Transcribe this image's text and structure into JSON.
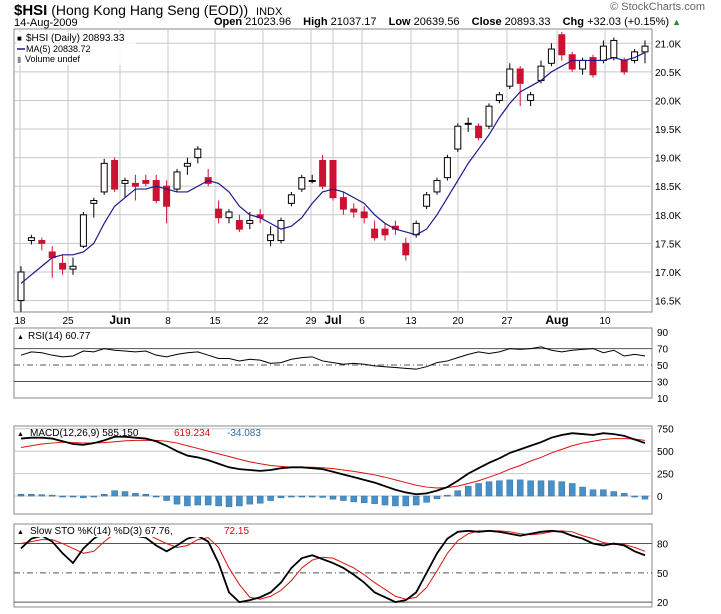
{
  "header": {
    "symbol": "$HSI",
    "name": "(Hong Kong Hang Seng (EOD))",
    "exchange": "INDX",
    "date": "14-Aug-2009",
    "open_label": "Open",
    "open": "21023.96",
    "high_label": "High",
    "high": "21037.17",
    "low_label": "Low",
    "low": "20639.56",
    "close_label": "Close",
    "close": "20893.33",
    "chg_label": "Chg",
    "chg": "+32.03 (+0.15%)",
    "brand": "© StockCharts.com"
  },
  "colors": {
    "up": "#000000",
    "down": "#cc1133",
    "ma": "#1a1a8c",
    "signal": "#dd1111",
    "hist": "#4a90c8",
    "grid": "#c8c8c8"
  },
  "chart_data": [
    {
      "type": "candlestick",
      "legend": [
        "$HSI (Daily) 20893.33",
        "MA(5) 20838.72",
        "Volume undef"
      ],
      "x_ticks": [
        "18",
        "25",
        "Jun",
        "8",
        "15",
        "22",
        "29",
        "Jul",
        "6",
        "13",
        "20",
        "27",
        "Aug",
        "10"
      ],
      "y_ticks": [
        "21.0K",
        "20.5K",
        "20.0K",
        "19.5K",
        "19.0K",
        "18.5K",
        "18.0K",
        "17.5K",
        "17.0K",
        "16.5K"
      ],
      "ylim": [
        16300,
        21250
      ],
      "candles": [
        {
          "o": 16500,
          "h": 17100,
          "l": 16300,
          "c": 17000
        },
        {
          "o": 17550,
          "h": 17650,
          "l": 17480,
          "c": 17600
        },
        {
          "o": 17550,
          "h": 17600,
          "l": 17380,
          "c": 17500
        },
        {
          "o": 17350,
          "h": 17450,
          "l": 16900,
          "c": 17250
        },
        {
          "o": 17150,
          "h": 17300,
          "l": 16950,
          "c": 17050
        },
        {
          "o": 17050,
          "h": 17250,
          "l": 16950,
          "c": 17100
        },
        {
          "o": 17450,
          "h": 18050,
          "l": 17420,
          "c": 18000
        },
        {
          "o": 18200,
          "h": 18300,
          "l": 17950,
          "c": 18250
        },
        {
          "o": 18400,
          "h": 18980,
          "l": 18350,
          "c": 18900
        },
        {
          "o": 18950,
          "h": 19000,
          "l": 18400,
          "c": 18450
        },
        {
          "o": 18550,
          "h": 18650,
          "l": 18300,
          "c": 18600
        },
        {
          "o": 18550,
          "h": 18700,
          "l": 18250,
          "c": 18500
        },
        {
          "o": 18600,
          "h": 18700,
          "l": 18500,
          "c": 18550
        },
        {
          "o": 18600,
          "h": 18700,
          "l": 18200,
          "c": 18250
        },
        {
          "o": 18500,
          "h": 18600,
          "l": 17850,
          "c": 18150
        },
        {
          "o": 18450,
          "h": 18800,
          "l": 18400,
          "c": 18750
        },
        {
          "o": 18850,
          "h": 19000,
          "l": 18700,
          "c": 18900
        },
        {
          "o": 19000,
          "h": 19200,
          "l": 18900,
          "c": 19150
        },
        {
          "o": 18650,
          "h": 18800,
          "l": 18500,
          "c": 18550
        },
        {
          "o": 18100,
          "h": 18250,
          "l": 17850,
          "c": 17950
        },
        {
          "o": 17950,
          "h": 18100,
          "l": 17850,
          "c": 18050
        },
        {
          "o": 17900,
          "h": 18000,
          "l": 17700,
          "c": 17750
        },
        {
          "o": 17850,
          "h": 18050,
          "l": 17750,
          "c": 17900
        },
        {
          "o": 18000,
          "h": 18100,
          "l": 17850,
          "c": 17950
        },
        {
          "o": 17550,
          "h": 17800,
          "l": 17450,
          "c": 17650
        },
        {
          "o": 17550,
          "h": 17950,
          "l": 17500,
          "c": 17900
        },
        {
          "o": 18200,
          "h": 18400,
          "l": 18150,
          "c": 18350
        },
        {
          "o": 18450,
          "h": 18700,
          "l": 18400,
          "c": 18650
        },
        {
          "o": 18600,
          "h": 18700,
          "l": 18550,
          "c": 18600
        },
        {
          "o": 18950,
          "h": 19050,
          "l": 18450,
          "c": 18500
        },
        {
          "o": 18950,
          "h": 18950,
          "l": 18250,
          "c": 18300
        },
        {
          "o": 18300,
          "h": 18400,
          "l": 18000,
          "c": 18100
        },
        {
          "o": 18100,
          "h": 18200,
          "l": 17950,
          "c": 18050
        },
        {
          "o": 18050,
          "h": 18150,
          "l": 17850,
          "c": 17950
        },
        {
          "o": 17750,
          "h": 17900,
          "l": 17550,
          "c": 17600
        },
        {
          "o": 17750,
          "h": 17850,
          "l": 17550,
          "c": 17650
        },
        {
          "o": 17800,
          "h": 17900,
          "l": 17650,
          "c": 17750
        },
        {
          "o": 17500,
          "h": 17600,
          "l": 17200,
          "c": 17300
        },
        {
          "o": 17650,
          "h": 17900,
          "l": 17600,
          "c": 17850
        },
        {
          "o": 18150,
          "h": 18400,
          "l": 18100,
          "c": 18350
        },
        {
          "o": 18400,
          "h": 18650,
          "l": 18350,
          "c": 18600
        },
        {
          "o": 18650,
          "h": 19050,
          "l": 18600,
          "c": 19000
        },
        {
          "o": 19150,
          "h": 19600,
          "l": 19100,
          "c": 19550
        },
        {
          "o": 19600,
          "h": 19700,
          "l": 19450,
          "c": 19600
        },
        {
          "o": 19550,
          "h": 19600,
          "l": 19300,
          "c": 19350
        },
        {
          "o": 19550,
          "h": 19950,
          "l": 19500,
          "c": 19900
        },
        {
          "o": 20000,
          "h": 20150,
          "l": 19950,
          "c": 20100
        },
        {
          "o": 20250,
          "h": 20650,
          "l": 20200,
          "c": 20550
        },
        {
          "o": 20550,
          "h": 20600,
          "l": 19900,
          "c": 20300
        },
        {
          "o": 20000,
          "h": 20150,
          "l": 19900,
          "c": 20100
        },
        {
          "o": 20350,
          "h": 20700,
          "l": 20300,
          "c": 20600
        },
        {
          "o": 20650,
          "h": 21000,
          "l": 20600,
          "c": 20900
        },
        {
          "o": 21150,
          "h": 21200,
          "l": 20700,
          "c": 20800
        },
        {
          "o": 20800,
          "h": 20850,
          "l": 20500,
          "c": 20550
        },
        {
          "o": 20550,
          "h": 20750,
          "l": 20450,
          "c": 20700
        },
        {
          "o": 20750,
          "h": 20800,
          "l": 20400,
          "c": 20450
        },
        {
          "o": 20700,
          "h": 21050,
          "l": 20650,
          "c": 20950
        },
        {
          "o": 20750,
          "h": 21100,
          "l": 20700,
          "c": 21050
        },
        {
          "o": 20700,
          "h": 20750,
          "l": 20450,
          "c": 20500
        },
        {
          "o": 20700,
          "h": 20900,
          "l": 20650,
          "c": 20850
        },
        {
          "o": 20850,
          "h": 21050,
          "l": 20650,
          "c": 20950
        }
      ],
      "ma5": [
        16800,
        16950,
        17100,
        17250,
        17300,
        17300,
        17350,
        17500,
        17850,
        18150,
        18300,
        18450,
        18450,
        18500,
        18450,
        18400,
        18400,
        18500,
        18600,
        18550,
        18400,
        18150,
        18000,
        17950,
        17850,
        17750,
        17800,
        17950,
        18200,
        18400,
        18450,
        18400,
        18300,
        18200,
        18000,
        17850,
        17750,
        17700,
        17650,
        17750,
        18000,
        18300,
        18600,
        18900,
        19150,
        19400,
        19700,
        19950,
        20150,
        20250,
        20350,
        20500,
        20600,
        20700,
        20700,
        20700,
        20700,
        20750,
        20700,
        20750,
        20840
      ]
    },
    {
      "type": "line",
      "legend": [
        "RSI(14) 60.77"
      ],
      "y_ticks": [
        "90",
        "70",
        "50",
        "30",
        "10"
      ],
      "ylim": [
        10,
        95
      ],
      "values": [
        62,
        66,
        65,
        62,
        60,
        61,
        67,
        66,
        70,
        68,
        67,
        66,
        67,
        62,
        60,
        63,
        65,
        66,
        62,
        58,
        58,
        55,
        57,
        56,
        52,
        53,
        57,
        59,
        60,
        55,
        53,
        51,
        52,
        51,
        49,
        48,
        47,
        46,
        45,
        48,
        53,
        55,
        59,
        63,
        66,
        64,
        66,
        70,
        69,
        70,
        72,
        68,
        66,
        68,
        69,
        70,
        65,
        68,
        61,
        63,
        61
      ]
    },
    {
      "type": "line",
      "legend": [
        "MACD(12,26,9) 585.150",
        "619.234",
        "-34.083"
      ],
      "y_ticks": [
        "750",
        "500",
        "250",
        "0"
      ],
      "ylim": [
        -200,
        780
      ],
      "macd": [
        640,
        650,
        650,
        640,
        610,
        580,
        570,
        590,
        620,
        660,
        660,
        650,
        640,
        610,
        560,
        500,
        450,
        430,
        400,
        360,
        320,
        300,
        290,
        280,
        290,
        310,
        320,
        320,
        310,
        300,
        270,
        240,
        210,
        180,
        150,
        110,
        70,
        40,
        20,
        30,
        60,
        100,
        170,
        250,
        310,
        370,
        420,
        480,
        520,
        560,
        600,
        650,
        680,
        700,
        690,
        680,
        700,
        690,
        670,
        630,
        590
      ],
      "signal": [
        540,
        560,
        580,
        590,
        600,
        595,
        590,
        590,
        595,
        605,
        615,
        620,
        620,
        620,
        610,
        590,
        560,
        530,
        500,
        470,
        440,
        410,
        380,
        360,
        340,
        330,
        320,
        320,
        320,
        315,
        305,
        290,
        275,
        255,
        235,
        210,
        180,
        150,
        120,
        100,
        90,
        95,
        110,
        140,
        170,
        210,
        250,
        300,
        340,
        390,
        430,
        480,
        520,
        560,
        590,
        610,
        630,
        640,
        640,
        635,
        620
      ],
      "histogram": [
        20,
        20,
        15,
        10,
        0,
        -10,
        -20,
        -5,
        20,
        60,
        50,
        30,
        20,
        -10,
        -50,
        -90,
        -110,
        -100,
        -100,
        -110,
        -120,
        -110,
        -90,
        -80,
        -50,
        -20,
        0,
        0,
        -10,
        -15,
        -35,
        -50,
        -65,
        -75,
        -85,
        -100,
        -110,
        -110,
        -100,
        -70,
        -30,
        10,
        60,
        110,
        140,
        160,
        170,
        180,
        180,
        170,
        170,
        170,
        160,
        140,
        100,
        70,
        70,
        50,
        30,
        -5,
        -34
      ]
    },
    {
      "type": "line",
      "legend": [
        "Slow STO %K(14) %D(3) 67.76,",
        "72.15"
      ],
      "y_ticks": [
        "80",
        "50",
        "20"
      ],
      "ylim": [
        15,
        100
      ],
      "k": [
        75,
        85,
        88,
        82,
        70,
        60,
        75,
        85,
        92,
        95,
        92,
        88,
        86,
        78,
        72,
        78,
        85,
        88,
        82,
        60,
        30,
        20,
        22,
        25,
        30,
        40,
        55,
        65,
        68,
        64,
        60,
        55,
        48,
        40,
        30,
        25,
        20,
        22,
        30,
        50,
        70,
        85,
        92,
        93,
        92,
        93,
        92,
        90,
        88,
        90,
        92,
        93,
        92,
        88,
        85,
        80,
        78,
        80,
        78,
        72,
        68
      ],
      "d": [
        80,
        82,
        84,
        84,
        80,
        75,
        70,
        72,
        82,
        90,
        93,
        92,
        90,
        85,
        80,
        76,
        78,
        84,
        86,
        76,
        55,
        38,
        25,
        23,
        26,
        32,
        42,
        55,
        63,
        66,
        65,
        60,
        55,
        48,
        40,
        33,
        26,
        23,
        25,
        35,
        52,
        70,
        83,
        90,
        93,
        93,
        93,
        92,
        90,
        89,
        90,
        92,
        93,
        92,
        88,
        85,
        81,
        79,
        79,
        76,
        72
      ]
    }
  ]
}
